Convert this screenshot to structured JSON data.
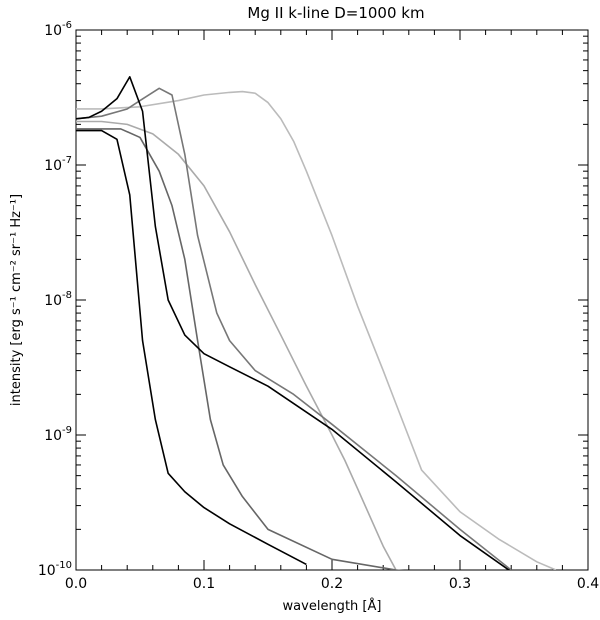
{
  "chart_data": {
    "type": "line",
    "title": "Mg II k-line    D=1000 km",
    "xlabel": "wavelength [Å]",
    "ylabel": "intensity [erg s⁻¹ cm⁻² sr⁻¹ Hz⁻¹]",
    "xlim": [
      0.0,
      0.4
    ],
    "ylim": [
      1e-10,
      1e-06
    ],
    "yscale": "log",
    "grid": false,
    "x_ticks": [
      0.0,
      0.1,
      0.2,
      0.3,
      0.4
    ],
    "x_tick_labels": [
      "0.0",
      "0.1",
      "0.2",
      "0.3",
      "0.4"
    ],
    "y_ticks": [
      1e-10,
      1e-09,
      1e-08,
      1e-07,
      1e-06
    ],
    "y_tick_labels": [
      {
        "base": "10",
        "exp": "-10"
      },
      {
        "base": "10",
        "exp": "-9"
      },
      {
        "base": "10",
        "exp": "-8"
      },
      {
        "base": "10",
        "exp": "-7"
      },
      {
        "base": "10",
        "exp": "-6"
      }
    ],
    "series": [
      {
        "color": "#000000",
        "x": [
          0.0,
          0.01,
          0.02,
          0.032,
          0.042,
          0.052,
          0.062,
          0.072,
          0.085,
          0.1,
          0.12,
          0.15,
          0.18
        ],
        "y": [
          1.8e-07,
          1.8e-07,
          1.8e-07,
          1.55e-07,
          6e-08,
          5e-09,
          1.3e-09,
          5.2e-10,
          3.8e-10,
          2.9e-10,
          2.2e-10,
          1.55e-10,
          1.1e-10
        ]
      },
      {
        "color": "#000000",
        "x": [
          0.0,
          0.01,
          0.02,
          0.032,
          0.042,
          0.052,
          0.062,
          0.072,
          0.085,
          0.1,
          0.12,
          0.15,
          0.2,
          0.25,
          0.3,
          0.345
        ],
        "y": [
          2.2e-07,
          2.25e-07,
          2.5e-07,
          3.1e-07,
          4.5e-07,
          2.5e-07,
          3.5e-08,
          1e-08,
          5.5e-09,
          4e-09,
          3.2e-09,
          2.3e-09,
          1.1e-09,
          4.5e-10,
          1.8e-10,
          9e-11
        ]
      },
      {
        "color": "#666666",
        "x": [
          0.0,
          0.02,
          0.035,
          0.05,
          0.065,
          0.075,
          0.085,
          0.095,
          0.105,
          0.115,
          0.13,
          0.15,
          0.2,
          0.25,
          0.3,
          0.345
        ],
        "y": [
          1.85e-07,
          1.85e-07,
          1.85e-07,
          1.6e-07,
          9e-08,
          5e-08,
          2e-08,
          5e-09,
          1.3e-09,
          6e-10,
          3.5e-10,
          2e-10,
          1.2e-10,
          1e-10,
          9e-11,
          8e-11
        ]
      },
      {
        "color": "#777777",
        "x": [
          0.0,
          0.02,
          0.04,
          0.05,
          0.065,
          0.075,
          0.085,
          0.095,
          0.11,
          0.12,
          0.14,
          0.17,
          0.2,
          0.25,
          0.3,
          0.34
        ],
        "y": [
          2.2e-07,
          2.3e-07,
          2.6e-07,
          3e-07,
          3.7e-07,
          3.3e-07,
          1.2e-07,
          3e-08,
          8e-09,
          5e-09,
          3e-09,
          2e-09,
          1.2e-09,
          5e-10,
          2e-10,
          1e-10
        ]
      },
      {
        "color": "#aaaaaa",
        "x": [
          0.0,
          0.02,
          0.04,
          0.06,
          0.08,
          0.1,
          0.12,
          0.14,
          0.16,
          0.18,
          0.2,
          0.21,
          0.22,
          0.24,
          0.25
        ],
        "y": [
          2.1e-07,
          2.1e-07,
          2e-07,
          1.7e-07,
          1.2e-07,
          7e-08,
          3.2e-08,
          1.3e-08,
          5.5e-09,
          2.3e-09,
          1e-09,
          6.5e-10,
          4e-10,
          1.5e-10,
          1e-10
        ]
      },
      {
        "color": "#bbbbbb",
        "x": [
          0.0,
          0.02,
          0.05,
          0.08,
          0.1,
          0.12,
          0.13,
          0.14,
          0.15,
          0.16,
          0.17,
          0.18,
          0.2,
          0.22,
          0.24,
          0.25,
          0.27,
          0.3,
          0.33,
          0.36,
          0.375
        ],
        "y": [
          2.6e-07,
          2.6e-07,
          2.7e-07,
          3e-07,
          3.3e-07,
          3.45e-07,
          3.5e-07,
          3.4e-07,
          2.9e-07,
          2.2e-07,
          1.5e-07,
          9e-08,
          3e-08,
          9e-09,
          3e-09,
          1.7e-09,
          5.5e-10,
          2.7e-10,
          1.7e-10,
          1.15e-10,
          1e-10
        ]
      }
    ]
  }
}
